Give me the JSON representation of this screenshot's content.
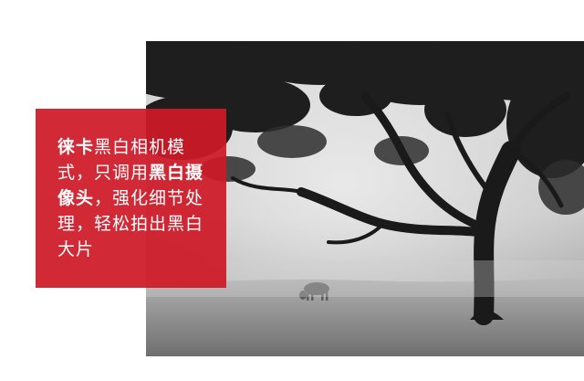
{
  "banner": {
    "caption": {
      "part1_bold": "徕卡",
      "part2": "黑白相机模式，只调用",
      "part3_bold": "黑白摄像头",
      "part4": "，强化细节处理，轻松拍出黑白大片"
    },
    "colors": {
      "panel": "#CE1A27",
      "text": "#FFFFFF",
      "background": "#FFFFFF"
    }
  }
}
